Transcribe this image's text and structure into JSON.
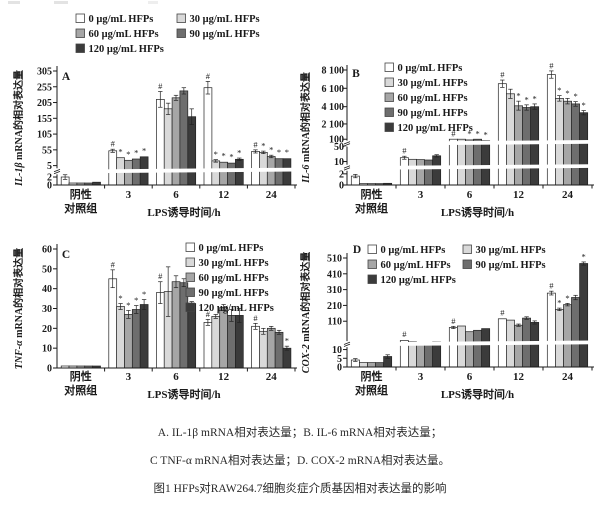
{
  "figure": {
    "caption_line1": "A. IL-1β mRNA相对表达量；B. IL-6 mRNA相对表达量；",
    "caption_line2": "C TNF-α mRNA相对表达量；D. COX-2 mRNA相对表达量。",
    "caption_line3": "图1 HFPs对RAW264.7细胞炎症介质基因相对表达量的影响"
  },
  "series_colors": [
    "#ffffff",
    "#d9d9d9",
    "#a6a6a6",
    "#6e6e6e",
    "#3b3b3b"
  ],
  "legend_labels": [
    "0 μg/mL HFPs",
    "30 μg/mL HFPs",
    "60 μg/mL HFPs",
    "90 μg/mL HFPs",
    "120 μg/mL HFPs"
  ],
  "chart_data": [
    {
      "type": "bar",
      "panel": "A",
      "ylabel_gene": "IL-1β",
      "ylabel_suffix": " mRNA的相对表达量",
      "xlabel": "LPS诱导时间/h",
      "categories": [
        "阴性对照组",
        "3",
        "6",
        "12",
        "24"
      ],
      "category_lines": [
        [
          "阴性",
          "对照组"
        ],
        [
          "3"
        ],
        [
          "6"
        ],
        [
          "12"
        ],
        [
          "24"
        ]
      ],
      "yticks": [
        {
          "v": 0,
          "label": "0"
        },
        {
          "v": 2,
          "label": "2"
        },
        {
          "v": 5,
          "label": "5"
        },
        {
          "v": 55,
          "label": "55"
        },
        {
          "v": 105,
          "label": "105"
        },
        {
          "v": 155,
          "label": "155"
        },
        {
          "v": 205,
          "label": "205"
        },
        {
          "v": 255,
          "label": "255"
        },
        {
          "v": 305,
          "label": "305"
        }
      ],
      "scale": [
        [
          0,
          0
        ],
        [
          2,
          0.07
        ],
        [
          5,
          0.17
        ],
        [
          305,
          1.0
        ]
      ],
      "axis_breaks": [
        0.12
      ],
      "series": [
        {
          "name": "0 μg/mL HFPs",
          "values": [
            2,
            52,
            215,
            252,
            50
          ],
          "errors": [
            0.6,
            5,
            25,
            20,
            5
          ],
          "annotations": [
            "",
            "#",
            "#",
            "#",
            "#"
          ]
        },
        {
          "name": "30 μg/mL HFPs",
          "values": [
            0.5,
            30,
            185,
            20,
            47
          ],
          "errors": [
            0.2,
            3,
            18,
            4,
            4
          ],
          "annotations": [
            "",
            "*",
            "",
            "*",
            "*"
          ]
        },
        {
          "name": "60 μg/mL HFPs",
          "values": [
            0.5,
            22,
            220,
            16,
            34
          ],
          "errors": [
            0.2,
            2,
            8,
            3,
            4
          ],
          "annotations": [
            "",
            "*",
            "",
            "*",
            "*"
          ]
        },
        {
          "name": "90 μg/mL HFPs",
          "values": [
            0.5,
            26,
            242,
            13,
            27
          ],
          "errors": [
            0.2,
            3,
            10,
            3,
            3
          ],
          "annotations": [
            "",
            "*",
            "",
            "*",
            "*"
          ]
        },
        {
          "name": "120 μg/mL HFPs",
          "values": [
            0.7,
            33,
            160,
            25,
            27
          ],
          "errors": [
            0.2,
            3,
            25,
            4,
            3
          ],
          "annotations": [
            "",
            "*",
            "",
            "*",
            "*"
          ]
        }
      ]
    },
    {
      "type": "bar",
      "panel": "B",
      "ylabel_gene": "IL-6",
      "ylabel_suffix": " mRNA的相对表达量",
      "xlabel": "LPS诱导时间/h",
      "categories": [
        "阴性对照组",
        "3",
        "6",
        "12",
        "24"
      ],
      "category_lines": [
        [
          "阴性",
          "对照组"
        ],
        [
          "3"
        ],
        [
          "6"
        ],
        [
          "12"
        ],
        [
          "24"
        ]
      ],
      "yticks": [
        {
          "v": 0,
          "label": "0"
        },
        {
          "v": 2,
          "label": "2"
        },
        {
          "v": 10,
          "label": "10"
        },
        {
          "v": 50,
          "label": "50"
        },
        {
          "v": 100,
          "label": "100"
        },
        {
          "v": 2100,
          "label": "2 100"
        },
        {
          "v": 4100,
          "label": "4 100"
        },
        {
          "v": 6100,
          "label": "6 100"
        },
        {
          "v": 8100,
          "label": "8 100"
        }
      ],
      "scale": [
        [
          0,
          0
        ],
        [
          2,
          0.097
        ],
        [
          10,
          0.204
        ],
        [
          50,
          0.336
        ],
        [
          100,
          0.398
        ],
        [
          2100,
          0.531
        ],
        [
          4100,
          0.681
        ],
        [
          6100,
          0.841
        ],
        [
          8100,
          1.0
        ]
      ],
      "axis_breaks": [
        0.15,
        0.36
      ],
      "series": [
        {
          "name": "0 μg/mL HFPs",
          "values": [
            1.6,
            20,
            105,
            6600,
            7600
          ],
          "errors": [
            0.3,
            4,
            8,
            400,
            400
          ],
          "annotations": [
            "",
            "#",
            "#",
            "#",
            "#"
          ]
        },
        {
          "name": "30 μg/mL HFPs",
          "values": [
            0.25,
            16,
            100,
            5500,
            5000
          ],
          "errors": [
            0.1,
            2,
            6,
            500,
            300
          ],
          "annotations": [
            "",
            "",
            "",
            "",
            "*"
          ]
        },
        {
          "name": "60 μg/mL HFPs",
          "values": [
            0.25,
            15,
            95,
            4200,
            4700
          ],
          "errors": [
            0.1,
            2,
            6,
            500,
            300
          ],
          "annotations": [
            "",
            "",
            "*",
            "*",
            "*"
          ]
        },
        {
          "name": "90 μg/mL HFPs",
          "values": [
            0.25,
            14,
            100,
            4000,
            4400
          ],
          "errors": [
            0.1,
            2,
            6,
            300,
            250
          ],
          "annotations": [
            "",
            "",
            "*",
            "*",
            "*"
          ]
        },
        {
          "name": "120 μg/mL HFPs",
          "values": [
            0.3,
            25,
            90,
            4100,
            3400
          ],
          "errors": [
            0.1,
            3,
            6,
            300,
            250
          ],
          "annotations": [
            "",
            "",
            "*",
            "*",
            "*"
          ]
        }
      ]
    },
    {
      "type": "bar",
      "panel": "C",
      "ylabel_gene": "TNF-α",
      "ylabel_suffix": " mRNA的相对表达量",
      "xlabel": "LPS诱导时间/h",
      "categories": [
        "阴性对照组",
        "3",
        "6",
        "12",
        "24"
      ],
      "category_lines": [
        [
          "阴性",
          "对照组"
        ],
        [
          "3"
        ],
        [
          "6"
        ],
        [
          "12"
        ],
        [
          "24"
        ]
      ],
      "yticks": [
        {
          "v": 0,
          "label": "0"
        },
        {
          "v": 10,
          "label": "10"
        },
        {
          "v": 20,
          "label": "20"
        },
        {
          "v": 30,
          "label": "30"
        },
        {
          "v": 40,
          "label": "40"
        },
        {
          "v": 50,
          "label": "50"
        },
        {
          "v": 60,
          "label": "60"
        }
      ],
      "scale": [
        [
          0,
          0
        ],
        [
          60,
          1.0
        ]
      ],
      "axis_breaks": [],
      "series": [
        {
          "name": "0 μg/mL HFPs",
          "values": [
            1,
            45,
            38,
            23,
            21
          ],
          "errors": [
            0.2,
            4.5,
            5.5,
            1.5,
            1.5
          ],
          "annotations": [
            "",
            "#",
            "#",
            "#",
            "#"
          ]
        },
        {
          "name": "30 μg/mL HFPs",
          "values": [
            1,
            31,
            38.5,
            26,
            18.5
          ],
          "errors": [
            0.2,
            1.5,
            12.5,
            1,
            1.5
          ],
          "annotations": [
            "",
            "*",
            "",
            "",
            ""
          ]
        },
        {
          "name": "60 μg/mL HFPs",
          "values": [
            1,
            27,
            43.5,
            30.5,
            20
          ],
          "errors": [
            0.2,
            2,
            3,
            1.5,
            1
          ],
          "annotations": [
            "",
            "*",
            "",
            "",
            ""
          ]
        },
        {
          "name": "90 μg/mL HFPs",
          "values": [
            1,
            29.5,
            43,
            26.5,
            18
          ],
          "errors": [
            0.2,
            2,
            2,
            3,
            1
          ],
          "annotations": [
            "",
            "*",
            "",
            "",
            ""
          ]
        },
        {
          "name": "120 μg/mL HFPs",
          "values": [
            1,
            32,
            32.5,
            26.5,
            10
          ],
          "errors": [
            0.2,
            2.5,
            1,
            3.5,
            1
          ],
          "annotations": [
            "",
            "*",
            "",
            "",
            "*"
          ]
        }
      ]
    },
    {
      "type": "bar",
      "panel": "D",
      "ylabel_gene": "COX-2",
      "ylabel_suffix": " mRNA的相对表达量",
      "xlabel": "LPS诱导时间/h",
      "categories": [
        "阴性对照组",
        "3",
        "6",
        "12",
        "24"
      ],
      "category_lines": [
        [
          "阴性",
          "对照组"
        ],
        [
          "3"
        ],
        [
          "6"
        ],
        [
          "12"
        ],
        [
          "24"
        ]
      ],
      "yticks": [
        {
          "v": 0,
          "label": "0"
        },
        {
          "v": 5,
          "label": "5"
        },
        {
          "v": 10,
          "label": "10"
        },
        {
          "v": 110,
          "label": "110"
        },
        {
          "v": 210,
          "label": "210"
        },
        {
          "v": 310,
          "label": "310"
        },
        {
          "v": 410,
          "label": "410"
        },
        {
          "v": 510,
          "label": "510"
        }
      ],
      "scale": [
        [
          0,
          0
        ],
        [
          5,
          0.08
        ],
        [
          10,
          0.16
        ],
        [
          110,
          0.42
        ],
        [
          210,
          0.565
        ],
        [
          310,
          0.71
        ],
        [
          410,
          0.855
        ],
        [
          510,
          1.0
        ]
      ],
      "axis_breaks": [
        0.21
      ],
      "series": [
        {
          "name": "0 μg/mL HFPs",
          "values": [
            4,
            42,
            88,
            125,
            288
          ],
          "errors": [
            0.8,
            3,
            4,
            6,
            12
          ],
          "annotations": [
            "",
            "#",
            "#",
            "#",
            "#"
          ]
        },
        {
          "name": "30 μg/mL HFPs",
          "values": [
            2.5,
            37,
            93,
            117,
            185
          ],
          "errors": [
            0.5,
            2,
            3,
            5,
            8
          ],
          "annotations": [
            "",
            "",
            "",
            "",
            "*"
          ]
        },
        {
          "name": "60 μg/mL HFPs",
          "values": [
            2.5,
            35,
            73,
            96,
            215
          ],
          "errors": [
            0.5,
            2,
            3,
            4,
            8
          ],
          "annotations": [
            "",
            "",
            "",
            "",
            "*"
          ]
        },
        {
          "name": "90 μg/mL HFPs",
          "values": [
            2.5,
            35,
            78,
            130,
            260
          ],
          "errors": [
            0.5,
            2,
            3,
            8,
            14
          ],
          "annotations": [
            "",
            "",
            "",
            "",
            ""
          ]
        },
        {
          "name": "120 μg/mL HFPs",
          "values": [
            6,
            37,
            84,
            106,
            475
          ],
          "errors": [
            1,
            2,
            3,
            6,
            10
          ],
          "annotations": [
            "",
            "",
            "",
            "",
            "*"
          ]
        }
      ]
    }
  ]
}
